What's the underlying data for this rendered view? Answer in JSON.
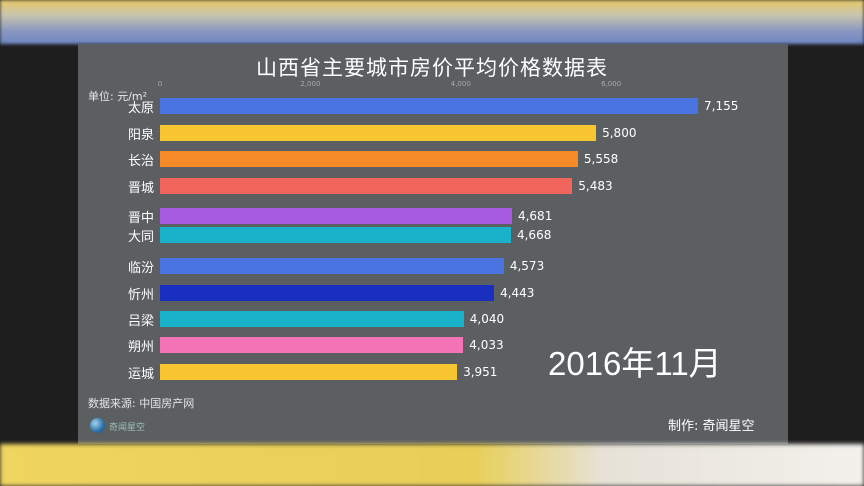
{
  "chart_data": {
    "type": "bar",
    "orientation": "horizontal",
    "title": "山西省主要城市房价平均价格数据表",
    "unit_label": "单位: 元/m²",
    "categories": [
      "太原",
      "阳泉",
      "长治",
      "晋城",
      "晋中",
      "大同",
      "临汾",
      "忻州",
      "吕梁",
      "朔州",
      "运城"
    ],
    "values": [
      7155,
      5800,
      5558,
      5483,
      4681,
      4668,
      4573,
      4443,
      4040,
      4033,
      3951
    ],
    "value_labels": [
      "7,155",
      "5,800",
      "5,558",
      "5,483",
      "4,681",
      "4,668",
      "4,573",
      "4,443",
      "4,040",
      "4,033",
      "3,951"
    ],
    "colors": [
      "#4a74e0",
      "#f7c630",
      "#f78a28",
      "#f0655c",
      "#a65be0",
      "#1ab2c8",
      "#4a74e0",
      "#1a2fc0",
      "#1ab2c8",
      "#f472b6",
      "#f7c630"
    ],
    "x_ticks": [
      "0",
      "2,000",
      "4,000",
      "6,000"
    ],
    "x_tick_values": [
      0,
      2000,
      4000,
      6000
    ],
    "xlim": [
      0,
      7155
    ],
    "grid": false,
    "date_label": "2016年11月"
  },
  "footer": {
    "source": "数据来源: 中国房产网",
    "credit": "制作: 奇闻星空",
    "logo_text": "奇闻星空"
  }
}
